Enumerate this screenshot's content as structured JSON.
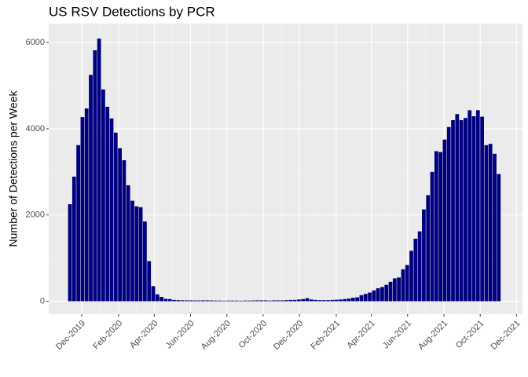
{
  "chart_data": {
    "type": "bar",
    "title": "US RSV Detections by PCR",
    "ylabel": "Number of Detections per Week",
    "color": "#000080",
    "x": [
      0,
      1,
      2,
      3,
      4,
      5,
      6,
      7,
      8,
      9,
      10,
      11,
      12,
      13,
      14,
      15,
      16,
      17,
      18,
      19,
      20,
      21,
      22,
      23,
      24,
      25,
      26,
      27,
      28,
      29,
      30,
      31,
      32,
      33,
      34,
      35,
      36,
      37,
      38,
      39,
      40,
      41,
      42,
      43,
      44,
      45,
      46,
      47,
      48,
      49,
      50,
      51,
      52,
      53,
      54,
      55,
      56,
      57,
      58,
      59,
      60,
      61,
      62,
      63,
      64,
      65,
      66,
      67,
      68,
      69,
      70,
      71,
      72,
      73,
      74,
      75,
      76,
      77,
      78,
      79,
      80,
      81,
      82,
      83,
      84,
      85,
      86,
      87,
      88,
      89,
      90,
      91,
      92,
      93,
      94,
      95,
      96,
      97,
      98,
      99,
      100,
      101,
      102,
      103
    ],
    "values": [
      2250,
      2890,
      3620,
      4270,
      4470,
      5250,
      5820,
      6090,
      4910,
      4510,
      4240,
      3910,
      3550,
      3270,
      2690,
      2330,
      2200,
      2180,
      1850,
      930,
      350,
      160,
      100,
      55,
      50,
      30,
      25,
      22,
      20,
      20,
      18,
      18,
      20,
      20,
      18,
      15,
      15,
      12,
      15,
      15,
      15,
      12,
      15,
      15,
      18,
      20,
      20,
      20,
      15,
      20,
      20,
      20,
      25,
      30,
      30,
      40,
      50,
      70,
      40,
      30,
      25,
      25,
      25,
      30,
      35,
      40,
      50,
      60,
      80,
      90,
      140,
      170,
      200,
      250,
      300,
      330,
      380,
      450,
      530,
      550,
      740,
      840,
      1170,
      1450,
      1620,
      2130,
      2460,
      3000,
      3480,
      3460,
      3750,
      4040,
      4200,
      4340,
      4200,
      4250,
      4430,
      4290,
      4430,
      4280,
      3620,
      3650,
      3420,
      2950
    ],
    "xlim": [
      -5.1,
      108.7
    ],
    "xticks": [
      {
        "value": 2.83,
        "label": "Dec-2019"
      },
      {
        "value": 11.69,
        "label": "Feb-2020"
      },
      {
        "value": 20.26,
        "label": "Apr-2020"
      },
      {
        "value": 28.97,
        "label": "Jun-2020"
      },
      {
        "value": 37.69,
        "label": "Aug-2020"
      },
      {
        "value": 46.4,
        "label": "Oct-2020"
      },
      {
        "value": 55.11,
        "label": "Dec-2020"
      },
      {
        "value": 63.97,
        "label": "Feb-2021"
      },
      {
        "value": 72.4,
        "label": "Apr-2021"
      },
      {
        "value": 81.11,
        "label": "Jun-2021"
      },
      {
        "value": 89.83,
        "label": "Aug-2021"
      },
      {
        "value": 98.54,
        "label": "Oct-2021"
      },
      {
        "value": 107.26,
        "label": "Dec-2021"
      }
    ],
    "ylim": [
      -300,
      6440
    ],
    "yticks": [
      0,
      2000,
      4000,
      6000
    ],
    "grid": true
  }
}
